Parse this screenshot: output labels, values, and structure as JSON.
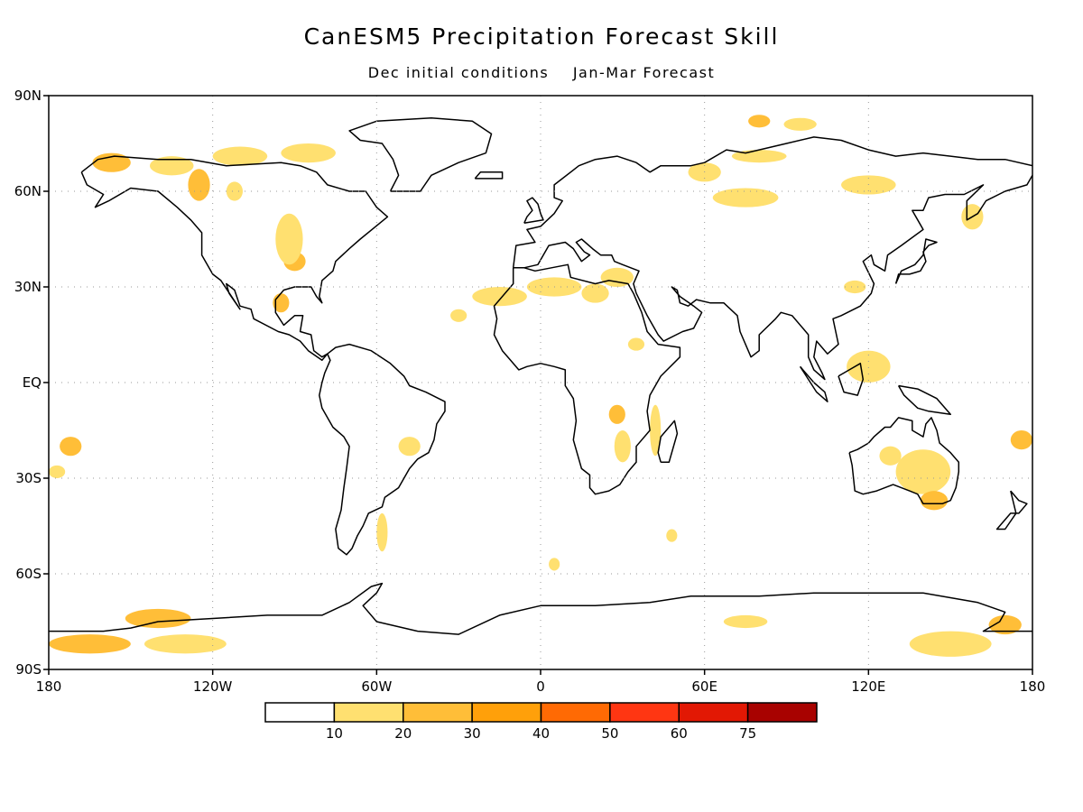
{
  "title": "CanESM5 Precipitation Forecast Skill",
  "subtitle": {
    "initial": "Dec initial conditions",
    "forecast": "Jan-Mar Forecast"
  },
  "map": {
    "projection": "equirectangular",
    "lon_range": [
      -180,
      180
    ],
    "lat_range": [
      -90,
      90
    ],
    "grid": "dotted",
    "lat_labels": [
      {
        "lat": 90,
        "text": "90N"
      },
      {
        "lat": 60,
        "text": "60N"
      },
      {
        "lat": 30,
        "text": "30N"
      },
      {
        "lat": 0,
        "text": "EQ"
      },
      {
        "lat": -30,
        "text": "30S"
      },
      {
        "lat": -60,
        "text": "60S"
      },
      {
        "lat": -90,
        "text": "90S"
      }
    ],
    "lon_labels": [
      {
        "lon": -180,
        "text": "180"
      },
      {
        "lon": -120,
        "text": "120W"
      },
      {
        "lon": -60,
        "text": "60W"
      },
      {
        "lon": 0,
        "text": "0"
      },
      {
        "lon": 60,
        "text": "60E"
      },
      {
        "lon": 120,
        "text": "120E"
      },
      {
        "lon": 180,
        "text": "180"
      }
    ],
    "skill_regions": [
      {
        "lon": -157,
        "lat": 69,
        "rx": 7,
        "ry": 3,
        "level": 2
      },
      {
        "lon": -135,
        "lat": 68,
        "rx": 8,
        "ry": 3,
        "level": 1
      },
      {
        "lon": -125,
        "lat": 62,
        "rx": 4,
        "ry": 5,
        "level": 2
      },
      {
        "lon": -110,
        "lat": 71,
        "rx": 10,
        "ry": 3,
        "level": 1
      },
      {
        "lon": -85,
        "lat": 72,
        "rx": 10,
        "ry": 3,
        "level": 1
      },
      {
        "lon": -90,
        "lat": 38,
        "rx": 4,
        "ry": 3,
        "level": 2
      },
      {
        "lon": -92,
        "lat": 45,
        "rx": 5,
        "ry": 8,
        "level": 1
      },
      {
        "lon": -95,
        "lat": 25,
        "rx": 3,
        "ry": 3,
        "level": 2
      },
      {
        "lon": -112,
        "lat": 60,
        "rx": 3,
        "ry": 3,
        "level": 1
      },
      {
        "lon": -15,
        "lat": 27,
        "rx": 10,
        "ry": 3,
        "level": 1
      },
      {
        "lon": 5,
        "lat": 30,
        "rx": 10,
        "ry": 3,
        "level": 1
      },
      {
        "lon": 20,
        "lat": 28,
        "rx": 5,
        "ry": 3,
        "level": 1
      },
      {
        "lon": 28,
        "lat": 33,
        "rx": 6,
        "ry": 3,
        "level": 1
      },
      {
        "lon": -30,
        "lat": 21,
        "rx": 3,
        "ry": 2,
        "level": 1
      },
      {
        "lon": 35,
        "lat": 12,
        "rx": 3,
        "ry": 2,
        "level": 1
      },
      {
        "lon": 60,
        "lat": 66,
        "rx": 6,
        "ry": 3,
        "level": 1
      },
      {
        "lon": 80,
        "lat": 71,
        "rx": 10,
        "ry": 2,
        "level": 1
      },
      {
        "lon": 80,
        "lat": 82,
        "rx": 4,
        "ry": 2,
        "level": 2
      },
      {
        "lon": 95,
        "lat": 81,
        "rx": 6,
        "ry": 2,
        "level": 1
      },
      {
        "lon": 75,
        "lat": 58,
        "rx": 12,
        "ry": 3,
        "level": 1
      },
      {
        "lon": 120,
        "lat": 62,
        "rx": 10,
        "ry": 3,
        "level": 1
      },
      {
        "lon": 158,
        "lat": 52,
        "rx": 4,
        "ry": 4,
        "level": 1
      },
      {
        "lon": 115,
        "lat": 30,
        "rx": 4,
        "ry": 2,
        "level": 1
      },
      {
        "lon": 120,
        "lat": 5,
        "rx": 8,
        "ry": 5,
        "level": 1
      },
      {
        "lon": 140,
        "lat": -28,
        "rx": 10,
        "ry": 7,
        "level": 1
      },
      {
        "lon": 144,
        "lat": -37,
        "rx": 5,
        "ry": 3,
        "level": 2
      },
      {
        "lon": 128,
        "lat": -23,
        "rx": 4,
        "ry": 3,
        "level": 1
      },
      {
        "lon": 176,
        "lat": -18,
        "rx": 4,
        "ry": 3,
        "level": 2
      },
      {
        "lon": 42,
        "lat": -15,
        "rx": 2,
        "ry": 8,
        "level": 1
      },
      {
        "lon": 28,
        "lat": -10,
        "rx": 3,
        "ry": 3,
        "level": 2
      },
      {
        "lon": 30,
        "lat": -20,
        "rx": 3,
        "ry": 5,
        "level": 1
      },
      {
        "lon": -48,
        "lat": -20,
        "rx": 4,
        "ry": 3,
        "level": 1
      },
      {
        "lon": -58,
        "lat": -47,
        "rx": 2,
        "ry": 6,
        "level": 1
      },
      {
        "lon": -172,
        "lat": -20,
        "rx": 4,
        "ry": 3,
        "level": 2
      },
      {
        "lon": -177,
        "lat": -28,
        "rx": 3,
        "ry": 2,
        "level": 1
      },
      {
        "lon": -165,
        "lat": -82,
        "rx": 15,
        "ry": 3,
        "level": 2
      },
      {
        "lon": -140,
        "lat": -74,
        "rx": 12,
        "ry": 3,
        "level": 2
      },
      {
        "lon": -130,
        "lat": -82,
        "rx": 15,
        "ry": 3,
        "level": 1
      },
      {
        "lon": 75,
        "lat": -75,
        "rx": 8,
        "ry": 2,
        "level": 1
      },
      {
        "lon": 150,
        "lat": -82,
        "rx": 15,
        "ry": 4,
        "level": 1
      },
      {
        "lon": 170,
        "lat": -76,
        "rx": 6,
        "ry": 3,
        "level": 2
      },
      {
        "lon": 5,
        "lat": -57,
        "rx": 2,
        "ry": 2,
        "level": 1
      },
      {
        "lon": 48,
        "lat": -48,
        "rx": 2,
        "ry": 2,
        "level": 1
      }
    ]
  },
  "colorbar": {
    "colors": [
      "#ffffff",
      "#ffe070",
      "#ffbe38",
      "#ffa00a",
      "#ff6a04",
      "#ff3612",
      "#e21804",
      "#a80200"
    ],
    "labels": [
      "10",
      "20",
      "30",
      "40",
      "50",
      "60",
      "75"
    ]
  }
}
